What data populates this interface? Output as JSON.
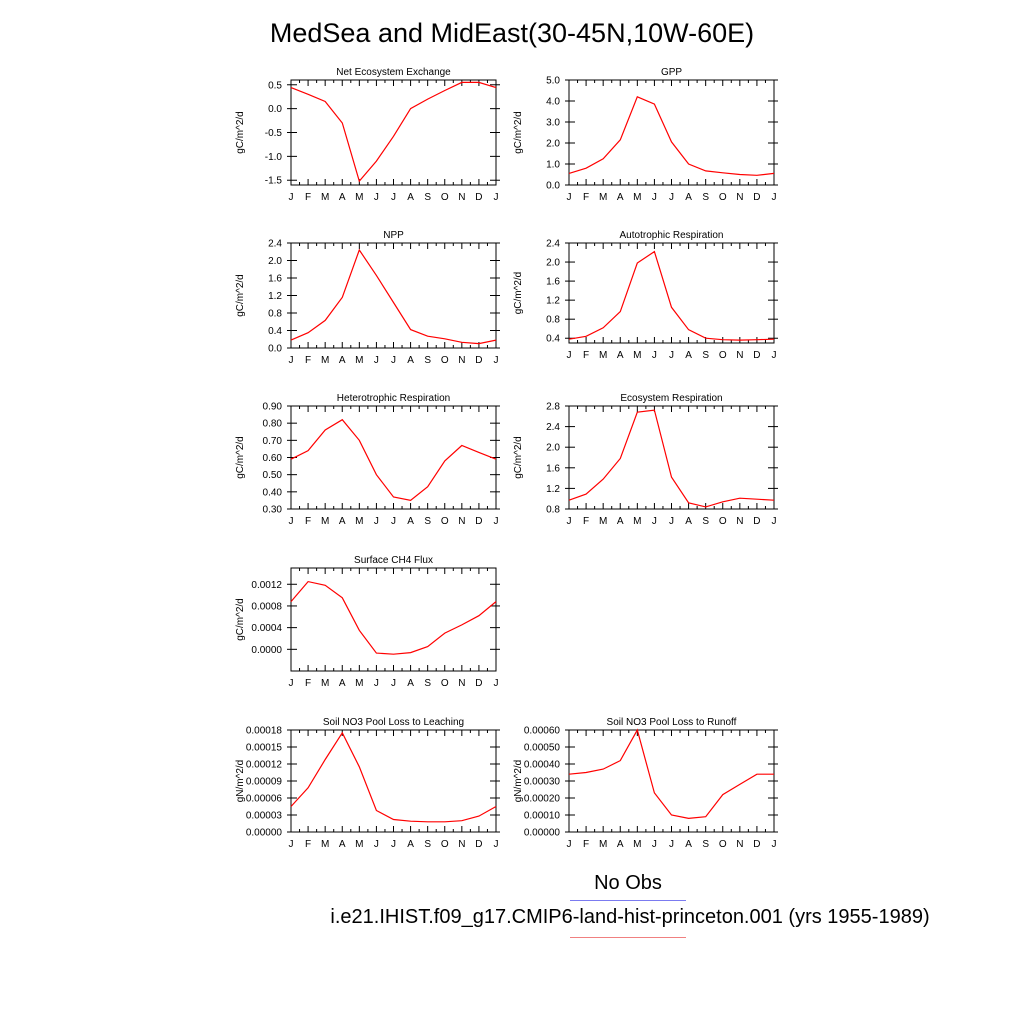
{
  "title": "MedSea and MidEast(30-45N,10W-60E)",
  "colors": {
    "model_line": "#ff0000",
    "obs_legend": "#7b7bf0",
    "model_legend": "#f08080"
  },
  "legend": {
    "obs_label": "No Obs",
    "model_label": "i.e21.IHIST.f09_g17.CMIP6-land-hist-princeton.001 (yrs 1955-1989)"
  },
  "chart_data": [
    {
      "type": "line",
      "title": "Net Ecosystem Exchange",
      "ylabel": "gC/m^2/d",
      "months": [
        "J",
        "F",
        "M",
        "A",
        "M",
        "J",
        "J",
        "A",
        "S",
        "O",
        "N",
        "D",
        "J"
      ],
      "ylim": [
        -1.6,
        0.6
      ],
      "yticks": [
        0.5,
        0.0,
        -0.5,
        -1.0,
        -1.5
      ],
      "ytick_labels": [
        "0.5",
        "0.0",
        "-0.5",
        "-1.0",
        "-1.5"
      ],
      "values": [
        0.44,
        0.3,
        0.15,
        -0.3,
        -1.52,
        -1.1,
        -0.58,
        0.0,
        0.2,
        0.38,
        0.55,
        0.55,
        0.44
      ]
    },
    {
      "type": "line",
      "title": "GPP",
      "ylabel": "gC/m^2/d",
      "months": [
        "J",
        "F",
        "M",
        "A",
        "M",
        "J",
        "J",
        "A",
        "S",
        "O",
        "N",
        "D",
        "J"
      ],
      "ylim": [
        0.0,
        5.0
      ],
      "yticks": [
        5.0,
        4.0,
        3.0,
        2.0,
        1.0,
        0.0
      ],
      "ytick_labels": [
        "5.0",
        "4.0",
        "3.0",
        "2.0",
        "1.0",
        "0.0"
      ],
      "values": [
        0.55,
        0.8,
        1.25,
        2.15,
        4.2,
        3.85,
        2.05,
        1.0,
        0.67,
        0.58,
        0.5,
        0.46,
        0.55
      ]
    },
    {
      "type": "line",
      "title": "NPP",
      "ylabel": "gC/m^2/d",
      "months": [
        "J",
        "F",
        "M",
        "A",
        "M",
        "J",
        "J",
        "A",
        "S",
        "O",
        "N",
        "D",
        "J"
      ],
      "ylim": [
        0.0,
        2.4
      ],
      "yticks": [
        2.4,
        2.0,
        1.6,
        1.2,
        0.8,
        0.4,
        0.0
      ],
      "ytick_labels": [
        "2.4",
        "2.0",
        "1.6",
        "1.2",
        "0.8",
        "0.4",
        "0.0"
      ],
      "values": [
        0.18,
        0.35,
        0.63,
        1.16,
        2.24,
        1.66,
        1.04,
        0.42,
        0.27,
        0.21,
        0.13,
        0.1,
        0.18
      ]
    },
    {
      "type": "line",
      "title": "Autotrophic Respiration",
      "ylabel": "gC/m^2/d",
      "months": [
        "J",
        "F",
        "M",
        "A",
        "M",
        "J",
        "J",
        "A",
        "S",
        "O",
        "N",
        "D",
        "J"
      ],
      "ylim": [
        0.3,
        2.4
      ],
      "yticks": [
        2.4,
        2.0,
        1.6,
        1.2,
        0.8,
        0.4
      ],
      "ytick_labels": [
        "2.4",
        "2.0",
        "1.6",
        "1.2",
        "0.8",
        "0.4"
      ],
      "values": [
        0.38,
        0.44,
        0.62,
        0.96,
        1.98,
        2.22,
        1.05,
        0.58,
        0.4,
        0.37,
        0.36,
        0.37,
        0.38
      ]
    },
    {
      "type": "line",
      "title": "Heterotrophic Respiration",
      "ylabel": "gC/m^2/d",
      "months": [
        "J",
        "F",
        "M",
        "A",
        "M",
        "J",
        "J",
        "A",
        "S",
        "O",
        "N",
        "D",
        "J"
      ],
      "ylim": [
        0.3,
        0.9
      ],
      "yticks": [
        0.9,
        0.8,
        0.7,
        0.6,
        0.5,
        0.4,
        0.3
      ],
      "ytick_labels": [
        "0.90",
        "0.80",
        "0.70",
        "0.60",
        "0.50",
        "0.40",
        "0.30"
      ],
      "values": [
        0.59,
        0.64,
        0.76,
        0.82,
        0.7,
        0.5,
        0.37,
        0.35,
        0.43,
        0.58,
        0.67,
        0.63,
        0.59
      ]
    },
    {
      "type": "line",
      "title": "Ecosystem Respiration",
      "ylabel": "gC/m^2/d",
      "months": [
        "J",
        "F",
        "M",
        "A",
        "M",
        "J",
        "J",
        "A",
        "S",
        "O",
        "N",
        "D",
        "J"
      ],
      "ylim": [
        0.8,
        2.8
      ],
      "yticks": [
        2.8,
        2.4,
        2.0,
        1.6,
        1.2,
        0.8
      ],
      "ytick_labels": [
        "2.8",
        "2.4",
        "2.0",
        "1.6",
        "1.2",
        "0.8"
      ],
      "values": [
        0.97,
        1.09,
        1.38,
        1.78,
        2.68,
        2.72,
        1.42,
        0.92,
        0.84,
        0.94,
        1.01,
        0.99,
        0.97
      ]
    },
    {
      "type": "line",
      "title": "Surface CH4 Flux",
      "ylabel": "gC/m^2/d",
      "months": [
        "J",
        "F",
        "M",
        "A",
        "M",
        "J",
        "J",
        "A",
        "S",
        "O",
        "N",
        "D",
        "J"
      ],
      "ylim": [
        -0.0004,
        0.0015
      ],
      "yticks": [
        0.0012,
        0.0008,
        0.0004,
        0.0
      ],
      "ytick_labels": [
        "0.0012",
        "0.0008",
        "0.0004",
        "0.0000"
      ],
      "values": [
        0.00088,
        0.00125,
        0.00118,
        0.00095,
        0.00035,
        -7e-05,
        -9e-05,
        -6e-05,
        5e-05,
        0.0003,
        0.00045,
        0.00062,
        0.00088
      ]
    },
    {
      "type": "line",
      "title": "Soil NO3 Pool Loss to Leaching",
      "ylabel": "gN/m^2/d",
      "months": [
        "J",
        "F",
        "M",
        "A",
        "M",
        "J",
        "J",
        "A",
        "S",
        "O",
        "N",
        "D",
        "J"
      ],
      "ylim": [
        0.0,
        0.00018
      ],
      "yticks": [
        0.00018,
        0.00015,
        0.00012,
        9e-05,
        6e-05,
        3e-05,
        0.0
      ],
      "ytick_labels": [
        "0.00018",
        "0.00015",
        "0.00012",
        "0.00009",
        "0.00006",
        "0.00003",
        "0.00000"
      ],
      "values": [
        4.5e-05,
        7.8e-05,
        0.000128,
        0.000175,
        0.000115,
        3.8e-05,
        2.2e-05,
        1.9e-05,
        1.8e-05,
        1.8e-05,
        2e-05,
        2.8e-05,
        4.5e-05
      ]
    },
    {
      "type": "line",
      "title": "Soil NO3 Pool Loss to Runoff",
      "ylabel": "gN/m^2/d",
      "months": [
        "J",
        "F",
        "M",
        "A",
        "M",
        "J",
        "J",
        "A",
        "S",
        "O",
        "N",
        "D",
        "J"
      ],
      "ylim": [
        0.0,
        0.0006
      ],
      "yticks": [
        0.0006,
        0.0005,
        0.0004,
        0.0003,
        0.0002,
        0.0001,
        0.0
      ],
      "ytick_labels": [
        "0.00060",
        "0.00050",
        "0.00040",
        "0.00030",
        "0.00020",
        "0.00010",
        "0.00000"
      ],
      "values": [
        0.00034,
        0.00035,
        0.00037,
        0.00042,
        0.0006,
        0.00023,
        0.0001,
        8e-05,
        9e-05,
        0.00022,
        0.00028,
        0.00034,
        0.00034
      ]
    }
  ]
}
